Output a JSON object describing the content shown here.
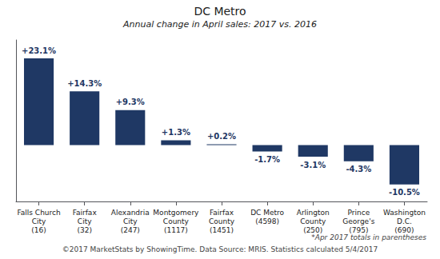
{
  "chart_data": {
    "type": "bar",
    "title": "DC Metro",
    "subtitle": "Annual change in April sales: 2017 vs. 2016",
    "categories": [
      "Falls Church\nCity\n(16)",
      "Fairfax\nCity\n(32)",
      "Alexandria\nCity\n(247)",
      "Montgomery\nCounty\n(1117)",
      "Fairfax\nCounty\n(1451)",
      "DC Metro\n(4598)",
      "Arlington\nCounty\n(250)",
      "Prince\nGeorge's\n(795)",
      "Washington\nD.C.\n(690)"
    ],
    "values": [
      23.1,
      14.3,
      9.3,
      1.3,
      0.2,
      -1.7,
      -3.1,
      -4.3,
      -10.5
    ],
    "value_labels": [
      "+23.1%",
      "+14.3%",
      "+9.3%",
      "+1.3%",
      "+0.2%",
      "-1.7%",
      "-3.1%",
      "-4.3%",
      "-10.5%"
    ],
    "data_labels": true,
    "color": "#1f3864",
    "ylim": [
      -15,
      28
    ],
    "tick_labels": "x",
    "grid": false,
    "annotations": [
      "*Apr 2017 totals in parentheses",
      "©2017 MarketStats by ShowingTime. Data Source: MRIS. Statistics calculated 5/4/2017"
    ]
  }
}
